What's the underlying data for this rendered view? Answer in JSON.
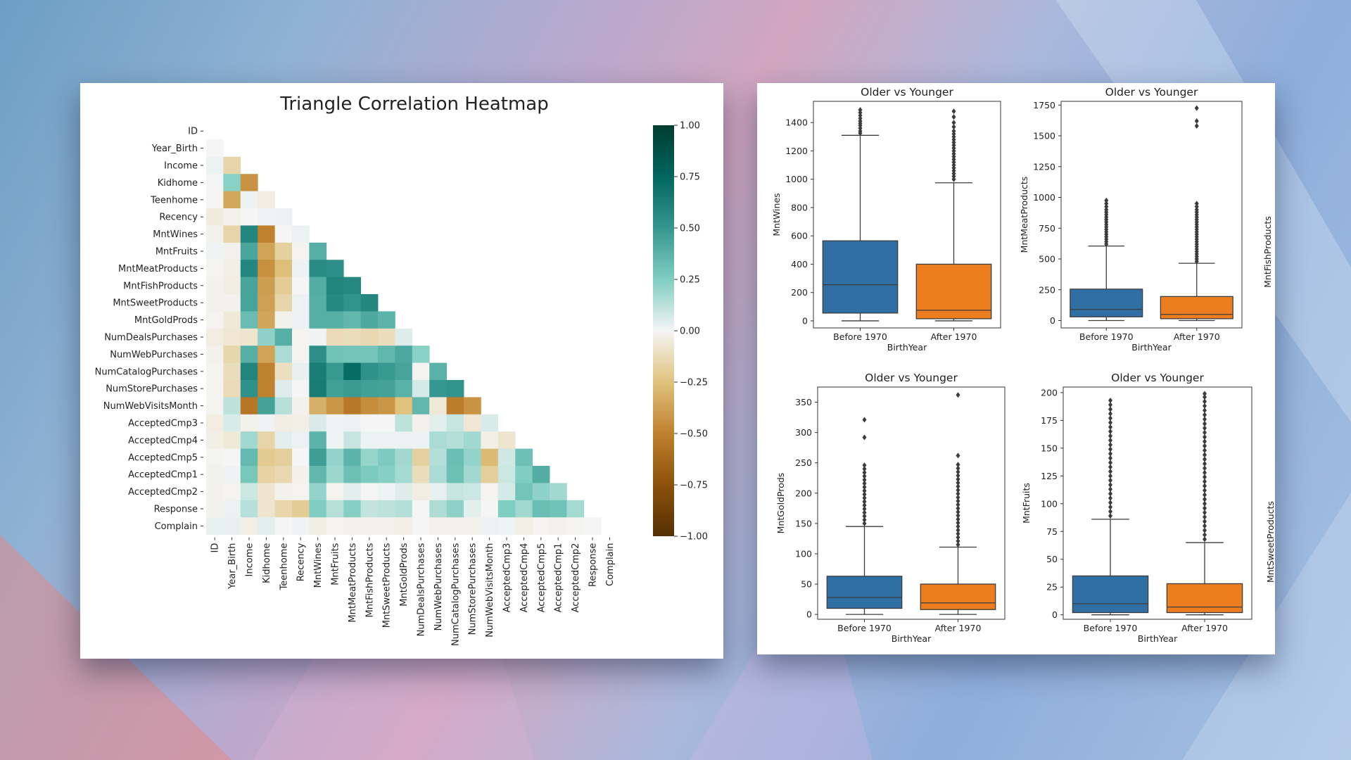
{
  "colors": {
    "negative": "#543005",
    "neutral": "#f5f5f5",
    "positive": "#003c30",
    "before": "#2f6fa4",
    "after": "#ed7d1f"
  },
  "chart_data": [
    {
      "type": "heatmap",
      "title": "Triangle Correlation Heatmap",
      "triangle": "lower",
      "variables": [
        "ID",
        "Year_Birth",
        "Income",
        "Kidhome",
        "Teenhome",
        "Recency",
        "MntWines",
        "MntFruits",
        "MntMeatProducts",
        "MntFishProducts",
        "MntSweetProducts",
        "MntGoldProds",
        "NumDealsPurchases",
        "NumWebPurchases",
        "NumCatalogPurchases",
        "NumStorePurchases",
        "NumWebVisitsMonth",
        "AcceptedCmp3",
        "AcceptedCmp4",
        "AcceptedCmp5",
        "AcceptedCmp1",
        "AcceptedCmp2",
        "Response",
        "Complain"
      ],
      "values": [
        [],
        [
          0.0
        ],
        [
          0.02,
          -0.16
        ],
        [
          0.0,
          0.23,
          -0.43
        ],
        [
          0.0,
          -0.35,
          0.02,
          -0.04
        ],
        [
          -0.05,
          -0.02,
          0.0,
          0.01,
          0.02
        ],
        [
          -0.02,
          -0.16,
          0.58,
          -0.5,
          0.0,
          0.02
        ],
        [
          0.01,
          -0.02,
          0.43,
          -0.37,
          -0.18,
          -0.01,
          0.39
        ],
        [
          -0.01,
          -0.03,
          0.58,
          -0.44,
          -0.26,
          0.02,
          0.56,
          0.54
        ],
        [
          -0.02,
          -0.04,
          0.44,
          -0.39,
          -0.2,
          0.0,
          0.4,
          0.59,
          0.57
        ],
        [
          -0.02,
          -0.02,
          0.44,
          -0.38,
          -0.16,
          0.02,
          0.39,
          0.57,
          0.52,
          0.58
        ],
        [
          -0.01,
          -0.06,
          0.33,
          -0.36,
          -0.02,
          0.02,
          0.39,
          0.39,
          0.35,
          0.42,
          0.37
        ],
        [
          -0.04,
          -0.07,
          -0.08,
          0.22,
          0.39,
          -0.01,
          0.01,
          -0.13,
          -0.12,
          -0.14,
          -0.12,
          0.05
        ],
        [
          -0.02,
          -0.15,
          0.39,
          -0.37,
          0.16,
          -0.01,
          0.54,
          0.3,
          0.29,
          0.29,
          0.35,
          0.42,
          0.23
        ],
        [
          -0.01,
          -0.12,
          0.59,
          -0.5,
          -0.11,
          0.03,
          0.63,
          0.49,
          0.72,
          0.53,
          0.49,
          0.44,
          -0.01,
          0.38
        ],
        [
          -0.01,
          -0.13,
          0.53,
          -0.5,
          0.05,
          0.0,
          0.64,
          0.46,
          0.48,
          0.46,
          0.45,
          0.38,
          0.07,
          0.5,
          0.52
        ],
        [
          -0.01,
          0.12,
          -0.55,
          0.45,
          0.13,
          -0.02,
          -0.32,
          -0.42,
          -0.54,
          -0.45,
          -0.42,
          -0.25,
          0.35,
          -0.06,
          -0.52,
          -0.43
        ],
        [
          -0.04,
          0.06,
          -0.02,
          0.01,
          -0.04,
          -0.03,
          0.06,
          0.01,
          0.02,
          0.0,
          0.0,
          0.12,
          -0.02,
          0.04,
          0.1,
          -0.07,
          0.06
        ],
        [
          -0.03,
          -0.06,
          0.18,
          -0.16,
          0.04,
          0.02,
          0.37,
          0.01,
          0.1,
          0.02,
          0.02,
          0.02,
          0.02,
          0.16,
          0.14,
          0.18,
          -0.03,
          -0.08
        ],
        [
          -0.01,
          0.0,
          0.34,
          -0.21,
          -0.19,
          0.0,
          0.47,
          0.21,
          0.37,
          0.2,
          0.26,
          0.18,
          -0.18,
          0.14,
          0.32,
          0.21,
          -0.28,
          0.08,
          0.31
        ],
        [
          -0.02,
          0.01,
          0.28,
          -0.17,
          -0.14,
          -0.02,
          0.35,
          0.19,
          0.31,
          0.26,
          0.24,
          0.17,
          -0.12,
          0.16,
          0.31,
          0.18,
          -0.19,
          0.09,
          0.25,
          0.4
        ],
        [
          -0.02,
          -0.01,
          0.09,
          -0.08,
          -0.02,
          -0.01,
          0.21,
          -0.01,
          0.04,
          0.0,
          0.01,
          0.05,
          -0.04,
          0.03,
          0.1,
          0.09,
          -0.01,
          0.07,
          0.29,
          0.22,
          0.18
        ],
        [
          -0.02,
          0.02,
          0.13,
          -0.08,
          -0.15,
          -0.2,
          0.25,
          0.13,
          0.24,
          0.11,
          0.12,
          0.14,
          0.0,
          0.15,
          0.22,
          0.04,
          0.0,
          0.25,
          0.18,
          0.32,
          0.3,
          0.17
        ],
        [
          0.03,
          0.03,
          -0.03,
          0.04,
          0.0,
          0.01,
          -0.04,
          -0.01,
          -0.02,
          -0.02,
          -0.02,
          -0.03,
          0.0,
          -0.02,
          -0.02,
          -0.02,
          0.02,
          0.01,
          -0.03,
          -0.01,
          -0.02,
          -0.01,
          0.0
        ]
      ],
      "zlim": [
        -1,
        1
      ],
      "colorbar_ticks": [
        "1.00",
        "0.75",
        "0.50",
        "0.25",
        "0.00",
        "−0.25",
        "−0.50",
        "−0.75",
        "−1.00"
      ],
      "colorbar_values": [
        1,
        0.75,
        0.5,
        0.25,
        0,
        -0.25,
        -0.5,
        -0.75,
        -1
      ]
    },
    {
      "type": "box",
      "title": "Older vs Younger",
      "xlabel": "BirthYear",
      "ylabel": "MntWines",
      "categories": [
        "Before 1970",
        "After 1970"
      ],
      "ylim": [
        -50,
        1550
      ],
      "yticks": [
        0,
        200,
        400,
        600,
        800,
        1000,
        1200,
        1400
      ],
      "boxes": [
        {
          "q1": 55,
          "median": 255,
          "q3": 565,
          "whisker_low": 0,
          "whisker_high": 1310,
          "outliers": [
            1325,
            1340,
            1360,
            1380,
            1395,
            1410,
            1430,
            1450,
            1470,
            1490
          ]
        },
        {
          "q1": 15,
          "median": 75,
          "q3": 400,
          "whisker_low": 0,
          "whisker_high": 975,
          "outliers": [
            1000,
            1020,
            1040,
            1060,
            1080,
            1100,
            1120,
            1140,
            1160,
            1180,
            1200,
            1220,
            1240,
            1260,
            1280,
            1300,
            1320,
            1340,
            1370,
            1400,
            1440,
            1480
          ]
        }
      ]
    },
    {
      "type": "box",
      "title": "Older vs Younger",
      "xlabel": "BirthYear",
      "ylabel": "MntMeatProducts",
      "categories": [
        "Before 1970",
        "After 1970"
      ],
      "ylim": [
        -60,
        1780
      ],
      "yticks": [
        0,
        250,
        500,
        750,
        1000,
        1250,
        1500,
        1750
      ],
      "boxes": [
        {
          "q1": 30,
          "median": 90,
          "q3": 255,
          "whisker_low": 0,
          "whisker_high": 605,
          "outliers": [
            620,
            640,
            660,
            680,
            700,
            720,
            740,
            760,
            780,
            800,
            820,
            840,
            860,
            880,
            900,
            925,
            950,
            975
          ]
        },
        {
          "q1": 15,
          "median": 50,
          "q3": 195,
          "whisker_low": 0,
          "whisker_high": 465,
          "outliers": [
            480,
            500,
            520,
            540,
            560,
            580,
            600,
            620,
            640,
            660,
            680,
            700,
            720,
            740,
            760,
            780,
            800,
            820,
            840,
            860,
            880,
            900,
            925,
            950,
            1580,
            1620,
            1725
          ]
        }
      ]
    },
    {
      "type": "box",
      "title": "Older vs Younger",
      "xlabel": "BirthYear",
      "ylabel": "MntGoldProds",
      "categories": [
        "Before 1970",
        "After 1970"
      ],
      "ylim": [
        -8,
        375
      ],
      "yticks": [
        0,
        50,
        100,
        150,
        200,
        250,
        300,
        350
      ],
      "boxes": [
        {
          "q1": 10,
          "median": 28,
          "q3": 63,
          "whisker_low": 0,
          "whisker_high": 145,
          "outliers": [
            150,
            156,
            162,
            168,
            174,
            180,
            186,
            192,
            198,
            204,
            210,
            216,
            222,
            228,
            234,
            240,
            246,
            292,
            321
          ]
        },
        {
          "q1": 8,
          "median": 19,
          "q3": 50,
          "whisker_low": 0,
          "whisker_high": 111,
          "outliers": [
            115,
            121,
            127,
            133,
            139,
            145,
            151,
            157,
            163,
            169,
            175,
            181,
            187,
            193,
            199,
            205,
            211,
            217,
            223,
            229,
            235,
            241,
            247,
            262,
            362
          ]
        }
      ]
    },
    {
      "type": "box",
      "title": "Older vs Younger",
      "xlabel": "BirthYear",
      "ylabel": "MntFruits",
      "categories": [
        "Before 1970",
        "After 1970"
      ],
      "ylim": [
        -4,
        205
      ],
      "yticks": [
        0,
        25,
        50,
        75,
        100,
        125,
        150,
        175,
        200
      ],
      "boxes": [
        {
          "q1": 2,
          "median": 10,
          "q3": 35,
          "whisker_low": 0,
          "whisker_high": 86,
          "outliers": [
            89,
            93,
            97,
            101,
            105,
            109,
            113,
            117,
            121,
            125,
            129,
            133,
            137,
            141,
            145,
            149,
            153,
            157,
            161,
            165,
            169,
            173,
            177,
            181,
            185,
            189,
            193
          ]
        },
        {
          "q1": 2,
          "median": 7,
          "q3": 28,
          "whisker_low": 0,
          "whisker_high": 65,
          "outliers": [
            68,
            72,
            76,
            80,
            84,
            88,
            92,
            96,
            100,
            104,
            108,
            112,
            116,
            120,
            124,
            128,
            132,
            136,
            140,
            144,
            148,
            152,
            156,
            160,
            164,
            168,
            172,
            176,
            180,
            184,
            188,
            192,
            196,
            199
          ]
        }
      ]
    }
  ],
  "cutoff_labels": {
    "right_top": "MntFishProducts",
    "right_bottom": "MntSweetProducts"
  }
}
